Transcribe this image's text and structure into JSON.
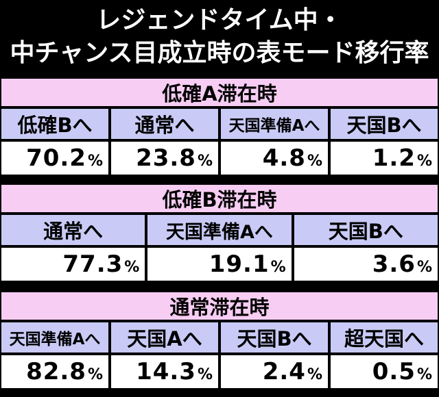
{
  "title": {
    "line1": "レジェンドタイム中・",
    "line2": "中チャンス目成立時の表モード移行率"
  },
  "sections": [
    {
      "heading": "低確A滞在時",
      "columns": [
        "低確Bへ",
        "通常へ",
        "天国準備Aへ",
        "天国Bへ"
      ],
      "values": [
        "70.2",
        "23.8",
        "4.8",
        "1.2"
      ],
      "unit": "%"
    },
    {
      "heading": "低確B滞在時",
      "columns": [
        "通常へ",
        "天国準備Aへ",
        "天国Bへ"
      ],
      "values": [
        "77.3",
        "19.1",
        "3.6"
      ],
      "unit": "%"
    },
    {
      "heading": "通常滞在時",
      "columns": [
        "天国準備Aへ",
        "天国Aへ",
        "天国Bへ",
        "超天国へ"
      ],
      "values": [
        "82.8",
        "14.3",
        "2.4",
        "0.5"
      ],
      "unit": "%"
    }
  ]
}
